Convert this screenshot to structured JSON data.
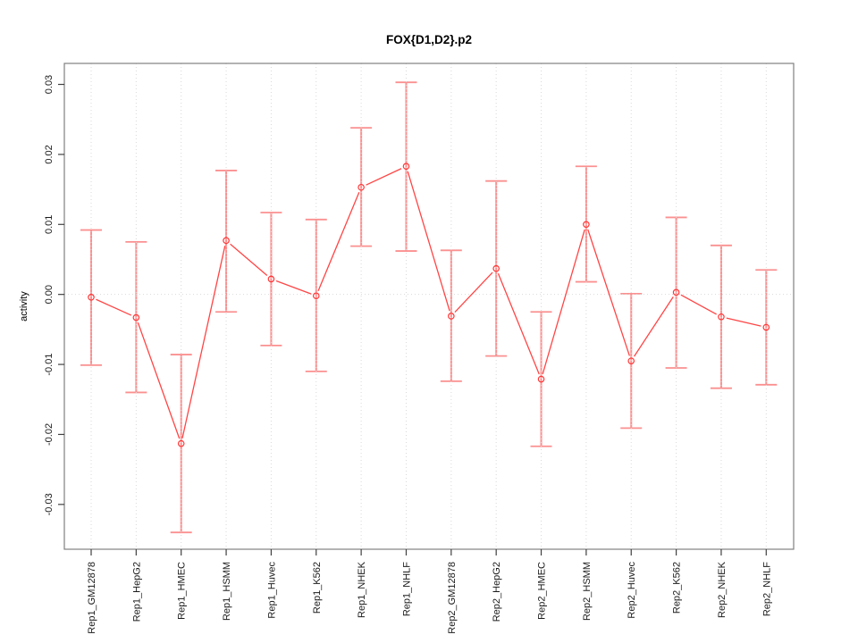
{
  "chart_data": {
    "type": "line",
    "title": "FOX{D1,D2}.p2",
    "ylabel": "activity",
    "xlabel": "",
    "legend": "none",
    "grid": "dotted vertical gridline at each category and dotted horizontal line at y=0",
    "categories": [
      "Rep1_GM12878",
      "Rep1_HepG2",
      "Rep1_HMEC",
      "Rep1_HSMM",
      "Rep1_Huvec",
      "Rep1_K562",
      "Rep1_NHEK",
      "Rep1_NHLF",
      "Rep2_GM12878",
      "Rep2_HepG2",
      "Rep2_HMEC",
      "Rep2_HSMM",
      "Rep2_Huvec",
      "Rep2_K562",
      "Rep2_NHEK",
      "Rep2_NHLF"
    ],
    "series": [
      {
        "name": "activity",
        "marker": "open-circle",
        "values": [
          -0.0004,
          -0.0033,
          -0.0213,
          0.0077,
          0.0022,
          -0.0002,
          0.0153,
          0.0183,
          -0.0031,
          0.0037,
          -0.0121,
          0.01,
          -0.0095,
          0.0003,
          -0.0032,
          -0.0047
        ],
        "error_lower": [
          -0.0101,
          -0.014,
          -0.034,
          -0.0025,
          -0.0073,
          -0.011,
          0.0069,
          0.0062,
          -0.0124,
          -0.0088,
          -0.0217,
          0.0018,
          -0.0191,
          -0.0105,
          -0.0134,
          -0.0129
        ],
        "error_upper": [
          0.0092,
          0.0075,
          -0.0086,
          0.0177,
          0.0117,
          0.0107,
          0.0238,
          0.0303,
          0.0063,
          0.0162,
          -0.0025,
          0.0183,
          0.0001,
          0.011,
          0.007,
          0.0035
        ]
      }
    ],
    "yticks": [
      -0.03,
      -0.02,
      -0.01,
      0,
      0.01,
      0.02,
      0.03
    ],
    "ylim": [
      -0.0364,
      0.033
    ],
    "colors": {
      "line": "#ff4545",
      "point": "#ff3636",
      "errorbar": "#fb9090",
      "grid": "#d9d9d9",
      "zero_line": "#d9d9d9",
      "box": "#808080",
      "tick": "#404040",
      "tick_label": "#1a1a1a",
      "title": "#000000"
    }
  }
}
